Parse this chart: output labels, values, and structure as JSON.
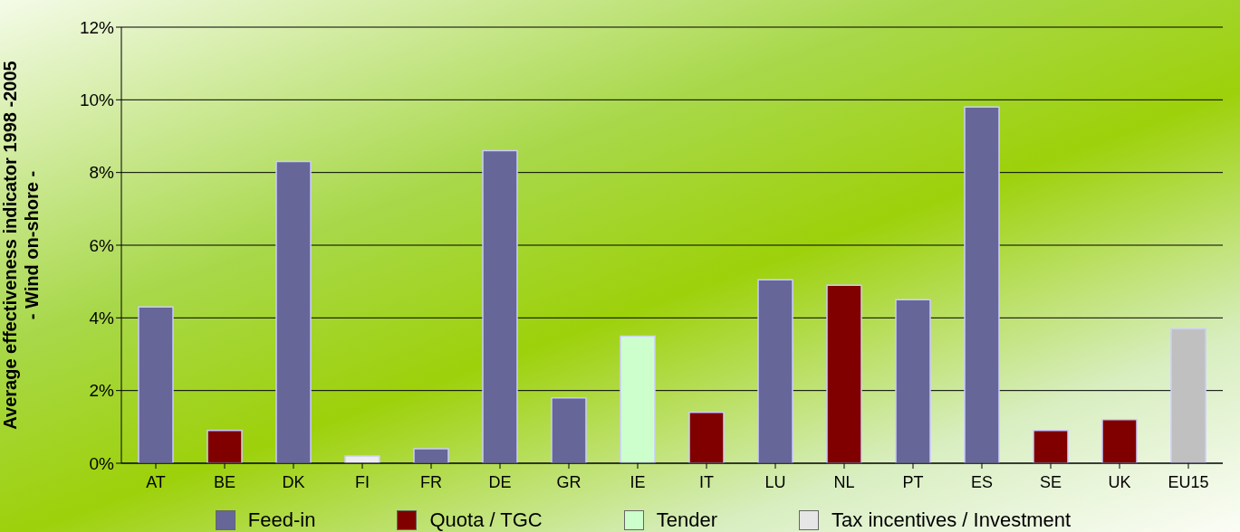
{
  "chart_data": {
    "type": "bar",
    "stacked": true,
    "ylabel": "Average effectiveness indicator 1998 -2005\n- Wind on-shore -",
    "categories": [
      "AT",
      "BE",
      "DK",
      "FI",
      "FR",
      "DE",
      "GR",
      "IE",
      "IT",
      "LU",
      "NL",
      "PT",
      "ES",
      "SE",
      "UK",
      "EU15"
    ],
    "series": [
      {
        "name": "Feed-in",
        "color": "#666699",
        "values": [
          4.3,
          null,
          8.3,
          null,
          0.4,
          8.6,
          1.8,
          null,
          null,
          5.05,
          null,
          4.5,
          9.8,
          null,
          null,
          null
        ]
      },
      {
        "name": "Quota / TGC",
        "color": "#800000",
        "values": [
          null,
          0.9,
          null,
          null,
          null,
          null,
          null,
          null,
          1.4,
          null,
          4.9,
          null,
          null,
          0.9,
          1.2,
          null
        ]
      },
      {
        "name": "Tender",
        "color": "#ccffcc",
        "values": [
          null,
          null,
          null,
          null,
          null,
          null,
          null,
          3.5,
          null,
          null,
          null,
          null,
          null,
          null,
          null,
          null
        ]
      },
      {
        "name": "Tax incentives / Investment",
        "color": "#e6e6e6",
        "colors": [
          null,
          null,
          null,
          "#eeeeee",
          null,
          null,
          null,
          null,
          null,
          null,
          null,
          null,
          null,
          null,
          null,
          "#c0c0c0"
        ],
        "values": [
          null,
          null,
          null,
          0.2,
          null,
          null,
          null,
          null,
          null,
          null,
          null,
          null,
          null,
          null,
          null,
          3.7
        ]
      }
    ],
    "ylim": [
      0,
      12
    ],
    "yticks": [
      {
        "value": 0,
        "label": "0%"
      },
      {
        "value": 2,
        "label": "2%"
      },
      {
        "value": 4,
        "label": "4%"
      },
      {
        "value": 6,
        "label": "6%"
      },
      {
        "value": 8,
        "label": "8%"
      },
      {
        "value": 10,
        "label": "10%"
      },
      {
        "value": 12,
        "label": "12%"
      }
    ],
    "grid": "y",
    "legend": "bottom"
  }
}
